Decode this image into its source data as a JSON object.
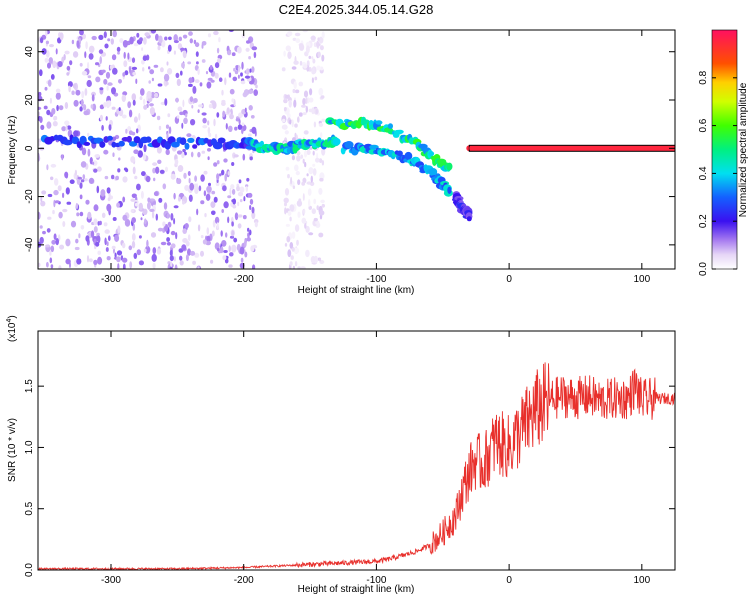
{
  "title": "C2E4.2025.344.05.14.G28",
  "chart_data": [
    {
      "type": "heatmap",
      "name": "spectrogram",
      "xlabel": "Height of straight line (km)",
      "ylabel": "Frequency (Hz)",
      "xlim": [
        -355,
        125
      ],
      "ylim": [
        -50,
        49
      ],
      "xticks": [
        -300,
        -200,
        -100,
        0,
        100
      ],
      "xtick_labels": [
        "-300",
        "-200",
        "-100",
        "0",
        "100"
      ],
      "yticks": [
        -40,
        -20,
        0,
        20,
        40
      ],
      "ytick_labels": [
        "-40",
        "-20",
        "0",
        "20",
        "40"
      ],
      "colorbar": {
        "label": "Normalized spectral amplitude",
        "range": [
          0,
          1
        ],
        "ticks": [
          0.0,
          0.2,
          0.4,
          0.6,
          0.8
        ],
        "tick_labels": [
          "0.0",
          "0.2",
          "0.4",
          "0.6",
          "0.8"
        ]
      },
      "features": [
        {
          "label": "noise region",
          "x_range": [
            -355,
            -190
          ],
          "freq_range": [
            -50,
            49
          ],
          "amplitude": 0.1
        },
        {
          "label": "scattered noise",
          "x_range": [
            -170,
            -140
          ],
          "freq_range": [
            -50,
            49
          ],
          "amplitude": 0.05
        },
        {
          "label": "line",
          "x": [
            -350,
            -300,
            -250,
            -200,
            -190
          ],
          "freq": [
            3,
            3,
            2,
            2,
            1
          ],
          "amplitude": 0.25
        },
        {
          "label": "line",
          "x": [
            -195,
            -170,
            -150,
            -130
          ],
          "freq": [
            1,
            0,
            2,
            3
          ],
          "amplitude": 0.4
        },
        {
          "label": "upper branch",
          "x": [
            -135,
            -110,
            -90,
            -70,
            -55,
            -45
          ],
          "freq": [
            10,
            11,
            8,
            2,
            -5,
            -9
          ],
          "amplitude": 0.45
        },
        {
          "label": "lower branch",
          "x": [
            -125,
            -105,
            -85,
            -70,
            -55,
            -45
          ],
          "freq": [
            0,
            0,
            -2,
            -6,
            -12,
            -18
          ],
          "amplitude": 0.35
        },
        {
          "label": "tail",
          "x": [
            -40,
            -35,
            -30
          ],
          "freq": [
            -20,
            -25,
            -28
          ],
          "amplitude": 0.2
        },
        {
          "label": "carrier",
          "x": [
            -30,
            0,
            50,
            125
          ],
          "freq": [
            0,
            0,
            0,
            0
          ],
          "amplitude": 0.95
        }
      ]
    },
    {
      "type": "line",
      "name": "snr",
      "xlabel": "Height of straight line (km)",
      "ylabel": "SNR (10 * v/v)",
      "multiplier": "(x10",
      "multiplier_exp": "4",
      "multiplier_close": ")",
      "xlim": [
        -355,
        125
      ],
      "ylim": [
        0,
        1.95
      ],
      "xticks": [
        -300,
        -200,
        -100,
        0,
        100
      ],
      "xtick_labels": [
        "-300",
        "-200",
        "-100",
        "0",
        "100"
      ],
      "yticks": [
        0.0,
        0.5,
        1.0,
        1.5
      ],
      "ytick_labels": [
        "0.0",
        "0.5",
        "1.0",
        "1.5"
      ],
      "color": "#e8302c",
      "x": [
        -355,
        -300,
        -250,
        -200,
        -180,
        -160,
        -140,
        -120,
        -100,
        -90,
        -80,
        -70,
        -60,
        -50,
        -40,
        -35,
        -30,
        -25,
        -20,
        -15,
        -10,
        -5,
        0,
        10,
        20,
        30,
        40,
        50,
        60,
        70,
        80,
        90,
        95,
        100,
        110,
        125
      ],
      "y": [
        0.01,
        0.01,
        0.01,
        0.02,
        0.03,
        0.04,
        0.05,
        0.06,
        0.07,
        0.09,
        0.12,
        0.15,
        0.2,
        0.3,
        0.45,
        0.65,
        0.8,
        0.9,
        0.85,
        0.95,
        1.05,
        1.02,
        1.0,
        1.15,
        1.3,
        1.38,
        1.42,
        1.4,
        1.42,
        1.38,
        1.4,
        1.4,
        1.5,
        1.38,
        1.4,
        1.4
      ]
    }
  ]
}
